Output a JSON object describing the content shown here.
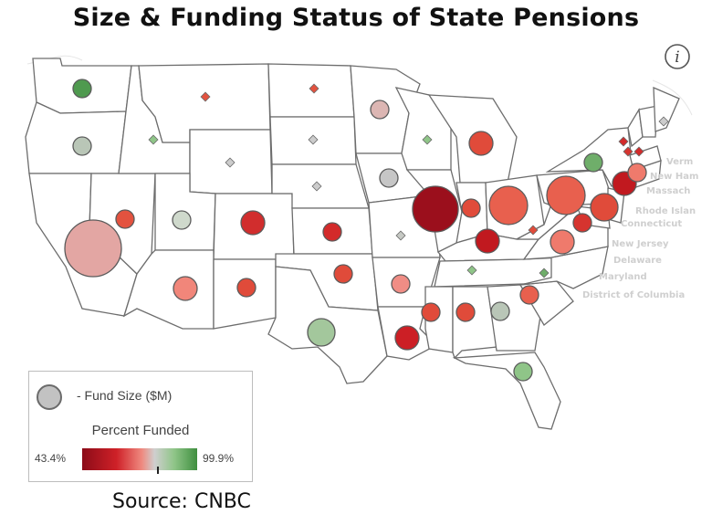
{
  "title": "Size & Funding Status of State Pensions",
  "source": "Source: CNBC",
  "info_icon": "info-circle-icon",
  "legend": {
    "size_label": "- Fund Size ($M)",
    "heading": "Percent Funded",
    "min_label": "43.4%",
    "max_label": "99.9%"
  },
  "northeast_labels": [
    "Verm",
    "New Ham",
    "Massach",
    "Rhode Islan",
    "Connecticut",
    "New Jersey",
    "Delaware",
    "Maryland",
    "District of Columbia"
  ],
  "color_scale": {
    "low": "#8c0b18",
    "mid": "#cfcfcf",
    "high": "#3f8f3f"
  },
  "state_bubbles": [
    {
      "state": "Washington",
      "fill": "#4f9a4f",
      "size": 2
    },
    {
      "state": "Oregon",
      "fill": "#b9c6b7",
      "size": 2
    },
    {
      "state": "California",
      "fill": "#e3a6a3",
      "size": 10
    },
    {
      "state": "Nevada",
      "fill": "#e3523f",
      "size": 2
    },
    {
      "state": "Idaho",
      "fill": "#8fc588",
      "size": 1
    },
    {
      "state": "Montana",
      "fill": "#e3523f",
      "size": 1
    },
    {
      "state": "Wyoming",
      "fill": "#cccccc",
      "size": 1
    },
    {
      "state": "Utah",
      "fill": "#cfd9cc",
      "size": 2
    },
    {
      "state": "Colorado",
      "fill": "#d12d2d",
      "size": 3
    },
    {
      "state": "Arizona",
      "fill": "#f1867a",
      "size": 3
    },
    {
      "state": "New Mexico",
      "fill": "#e04b3a",
      "size": 2
    },
    {
      "state": "North Dakota",
      "fill": "#e3523f",
      "size": 1
    },
    {
      "state": "South Dakota",
      "fill": "#cccccc",
      "size": 1
    },
    {
      "state": "Nebraska",
      "fill": "#cccccc",
      "size": 1
    },
    {
      "state": "Kansas",
      "fill": "#d32a2a",
      "size": 2
    },
    {
      "state": "Oklahoma",
      "fill": "#e04b3a",
      "size": 2
    },
    {
      "state": "Texas",
      "fill": "#a3c79c",
      "size": 4
    },
    {
      "state": "Minnesota",
      "fill": "#dcb6b3",
      "size": 2
    },
    {
      "state": "Iowa",
      "fill": "#c6c6c6",
      "size": 2
    },
    {
      "state": "Missouri",
      "fill": "#c6c9c4",
      "size": 1
    },
    {
      "state": "Arkansas",
      "fill": "#f08d85",
      "size": 2
    },
    {
      "state": "Louisiana",
      "fill": "#cc1f25",
      "size": 3
    },
    {
      "state": "Wisconsin",
      "fill": "#8fc588",
      "size": 1
    },
    {
      "state": "Illinois",
      "fill": "#9b0f1c",
      "size": 6
    },
    {
      "state": "Michigan",
      "fill": "#e04b3a",
      "size": 3
    },
    {
      "state": "Indiana",
      "fill": "#e04b3a",
      "size": 2
    },
    {
      "state": "Ohio",
      "fill": "#e8604e",
      "size": 5
    },
    {
      "state": "Kentucky",
      "fill": "#c1191f",
      "size": 3
    },
    {
      "state": "Tennessee",
      "fill": "#8fc588",
      "size": 1
    },
    {
      "state": "Mississippi",
      "fill": "#e04b3a",
      "size": 2
    },
    {
      "state": "Alabama",
      "fill": "#e04b3a",
      "size": 2
    },
    {
      "state": "Georgia",
      "fill": "#b9c6b7",
      "size": 2
    },
    {
      "state": "Florida",
      "fill": "#8fc588",
      "size": 2
    },
    {
      "state": "South Carolina",
      "fill": "#e8604e",
      "size": 2
    },
    {
      "state": "North Carolina",
      "fill": "#6fae6a",
      "size": 1
    },
    {
      "state": "Virginia",
      "fill": "#ef7a6c",
      "size": 3
    },
    {
      "state": "West Virginia",
      "fill": "#e04b3a",
      "size": 1
    },
    {
      "state": "Pennsylvania",
      "fill": "#e8604e",
      "size": 5
    },
    {
      "state": "New York",
      "fill": "#6fae6a",
      "size": 2
    },
    {
      "state": "Maryland",
      "fill": "#d6342f",
      "size": 2
    },
    {
      "state": "New Jersey",
      "fill": "#e04b3a",
      "size": 4
    },
    {
      "state": "Connecticut",
      "fill": "#c1191f",
      "size": 3
    },
    {
      "state": "Massachusetts",
      "fill": "#ef7a6c",
      "size": 2
    },
    {
      "state": "Rhode Island",
      "fill": "#d32a2a",
      "size": 1
    },
    {
      "state": "Vermont",
      "fill": "#d32a2a",
      "size": 1
    },
    {
      "state": "New Hampshire",
      "fill": "#d6342f",
      "size": 1
    },
    {
      "state": "Maine",
      "fill": "#cccccc",
      "size": 1
    }
  ]
}
